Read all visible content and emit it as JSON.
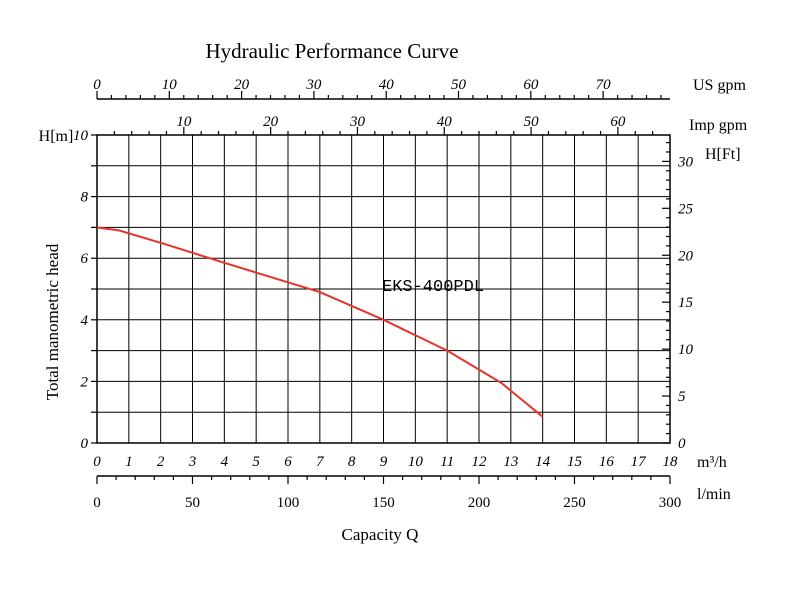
{
  "chart_data": {
    "type": "line",
    "title": "Hydraulic Performance Curve",
    "xlabel": "Capacity Q",
    "ylabel": "Total manometric head",
    "xlim": [
      0,
      18
    ],
    "ylim": [
      0,
      10
    ],
    "grid": true,
    "series": [
      {
        "name": "EKS-400PDL",
        "color": "#e8332a",
        "x": [
          0,
          0.7,
          2,
          4,
          7,
          9,
          11,
          12.7,
          14
        ],
        "y": [
          7.0,
          6.9,
          6.5,
          5.85,
          4.9,
          4.0,
          3.0,
          1.95,
          0.85
        ]
      }
    ],
    "axes": {
      "bottom_m3h": {
        "unit": "m³/h",
        "min": 0,
        "max": 18,
        "ticks": [
          0,
          1,
          2,
          3,
          4,
          5,
          6,
          7,
          8,
          9,
          10,
          11,
          12,
          13,
          14,
          15,
          16,
          17,
          18
        ]
      },
      "bottom_lmin": {
        "unit": "l/min",
        "min": 0,
        "max": 300,
        "ticks": [
          0,
          50,
          100,
          150,
          200,
          250,
          300
        ]
      },
      "top_usgpm": {
        "unit": "US gpm",
        "min": 0,
        "max": 79.25,
        "ticks": [
          0,
          10,
          20,
          30,
          40,
          50,
          60,
          70
        ]
      },
      "top_impgpm": {
        "unit": "Imp gpm",
        "min": 0,
        "max": 66.0,
        "ticks": [
          10,
          20,
          30,
          40,
          50,
          60
        ]
      },
      "left_m": {
        "unit": "H[m]",
        "min": 0,
        "max": 10,
        "ticks": [
          0,
          2,
          4,
          6,
          8,
          10
        ]
      },
      "right_ft": {
        "unit": "H[Ft]",
        "min": 0,
        "max": 32.81,
        "ticks": [
          0,
          5,
          10,
          15,
          20,
          25,
          30
        ]
      }
    }
  }
}
